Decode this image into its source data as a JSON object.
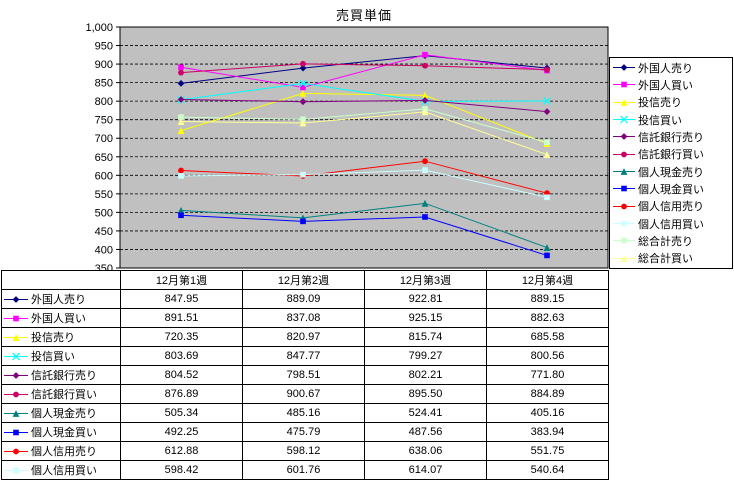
{
  "chart_data": {
    "type": "line",
    "title": "売買単価",
    "categories": [
      "12月第1週",
      "12月第2週",
      "12月第3週",
      "12月第4週"
    ],
    "ylim": [
      350,
      1000
    ],
    "ytick_step": 50,
    "grid": "dashed-horizontal",
    "plot_bg": "#C0C0C0",
    "legend_position": "right",
    "series": [
      {
        "name": "外国人売り",
        "color": "#000080",
        "marker": "diamond",
        "values": [
          847.95,
          889.09,
          922.81,
          889.15
        ]
      },
      {
        "name": "外国人買い",
        "color": "#FF00FF",
        "marker": "square",
        "values": [
          891.51,
          837.08,
          925.15,
          882.63
        ]
      },
      {
        "name": "投信売り",
        "color": "#FFFF00",
        "marker": "triangle",
        "values": [
          720.35,
          820.97,
          815.74,
          685.58
        ]
      },
      {
        "name": "投信買い",
        "color": "#00FFFF",
        "marker": "x",
        "values": [
          803.69,
          847.77,
          799.27,
          800.56
        ]
      },
      {
        "name": "信託銀行売り",
        "color": "#800080",
        "marker": "diamond",
        "values": [
          804.52,
          798.51,
          802.21,
          771.8
        ]
      },
      {
        "name": "信託銀行買い",
        "color": "#CC0066",
        "marker": "circle",
        "values": [
          876.89,
          900.67,
          895.5,
          884.89
        ]
      },
      {
        "name": "個人現金売り",
        "color": "#008080",
        "marker": "triangle",
        "values": [
          505.34,
          485.16,
          524.41,
          405.16
        ]
      },
      {
        "name": "個人現金買い",
        "color": "#0000FF",
        "marker": "square",
        "values": [
          492.25,
          475.79,
          487.56,
          383.94
        ]
      },
      {
        "name": "個人信用売り",
        "color": "#FF0000",
        "marker": "circle",
        "values": [
          612.88,
          598.12,
          638.06,
          551.75
        ]
      },
      {
        "name": "個人信用買い",
        "color": "#CCFFFF",
        "marker": "square",
        "values": [
          598.42,
          601.76,
          614.07,
          540.64
        ]
      },
      {
        "name": "総合計売り",
        "color": "#CCFFCC",
        "marker": "square",
        "values": [
          757,
          751,
          779,
          689
        ],
        "estimated_from_plot": true
      },
      {
        "name": "総合計買い",
        "color": "#FFFF99",
        "marker": "triangle",
        "values": [
          745,
          741,
          771,
          656
        ],
        "estimated_from_plot": true
      }
    ]
  },
  "table": {
    "columns": [
      "12月第1週",
      "12月第2週",
      "12月第3週",
      "12月第4週"
    ],
    "rows": [
      {
        "label": "外国人売り",
        "values": [
          "847.95",
          "889.09",
          "922.81",
          "889.15"
        ]
      },
      {
        "label": "外国人買い",
        "values": [
          "891.51",
          "837.08",
          "925.15",
          "882.63"
        ]
      },
      {
        "label": "投信売り",
        "values": [
          "720.35",
          "820.97",
          "815.74",
          "685.58"
        ]
      },
      {
        "label": "投信買い",
        "values": [
          "803.69",
          "847.77",
          "799.27",
          "800.56"
        ]
      },
      {
        "label": "信託銀行売り",
        "values": [
          "804.52",
          "798.51",
          "802.21",
          "771.80"
        ]
      },
      {
        "label": "信託銀行買い",
        "values": [
          "876.89",
          "900.67",
          "895.50",
          "884.89"
        ]
      },
      {
        "label": "個人現金売り",
        "values": [
          "505.34",
          "485.16",
          "524.41",
          "405.16"
        ]
      },
      {
        "label": "個人現金買い",
        "values": [
          "492.25",
          "475.79",
          "487.56",
          "383.94"
        ]
      },
      {
        "label": "個人信用売り",
        "values": [
          "612.88",
          "598.12",
          "638.06",
          "551.75"
        ]
      },
      {
        "label": "個人信用買い",
        "values": [
          "598.42",
          "601.76",
          "614.07",
          "540.64"
        ]
      }
    ]
  }
}
